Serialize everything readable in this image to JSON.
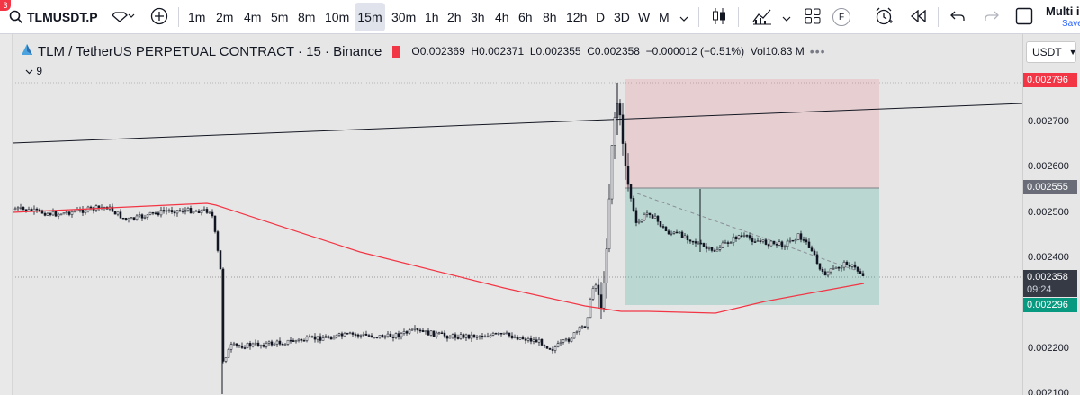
{
  "toolbar": {
    "notif_count": "3",
    "symbol": "TLMUSDT.P",
    "timeframes": [
      "1m",
      "2m",
      "4m",
      "5m",
      "8m",
      "10m",
      "15m",
      "30m",
      "1h",
      "2h",
      "3h",
      "4h",
      "6h",
      "8h",
      "12h",
      "D",
      "3D",
      "W",
      "M"
    ],
    "active_timeframe": "15m",
    "fund_label": "F",
    "multi_label": "Multi i",
    "save_label": "Save"
  },
  "legend": {
    "title": "TLM / TetherUS PERPETUAL CONTRACT · 15 · Binance",
    "open_label": "O",
    "open": "0.002369",
    "high_label": "H",
    "high": "0.002371",
    "low_label": "L",
    "low": "0.002355",
    "close_label": "C",
    "close": "0.002358",
    "change": "−0.000012 (−0.51%)",
    "vol_label": "Vol",
    "vol": "10.83 M"
  },
  "indicator": {
    "label": "9"
  },
  "price_axis": {
    "currency": "USDT",
    "ticks": [
      "0.002700",
      "0.002600",
      "0.002500",
      "0.002400",
      "0.002200",
      "0.002100"
    ],
    "stop_price": "0.002796",
    "entry_price": "0.002555",
    "last_price": "0.002358",
    "countdown": "09:24",
    "target_price": "0.002296"
  },
  "colors": {
    "stop": "#f23645",
    "entry": "#6a6d78",
    "last": "#363a45",
    "target": "#089981",
    "ma": "#f23645",
    "trendline": "#131722",
    "risk_zone": "rgba(242,54,69,0.15)",
    "reward_zone": "rgba(8,153,129,0.20)"
  }
}
